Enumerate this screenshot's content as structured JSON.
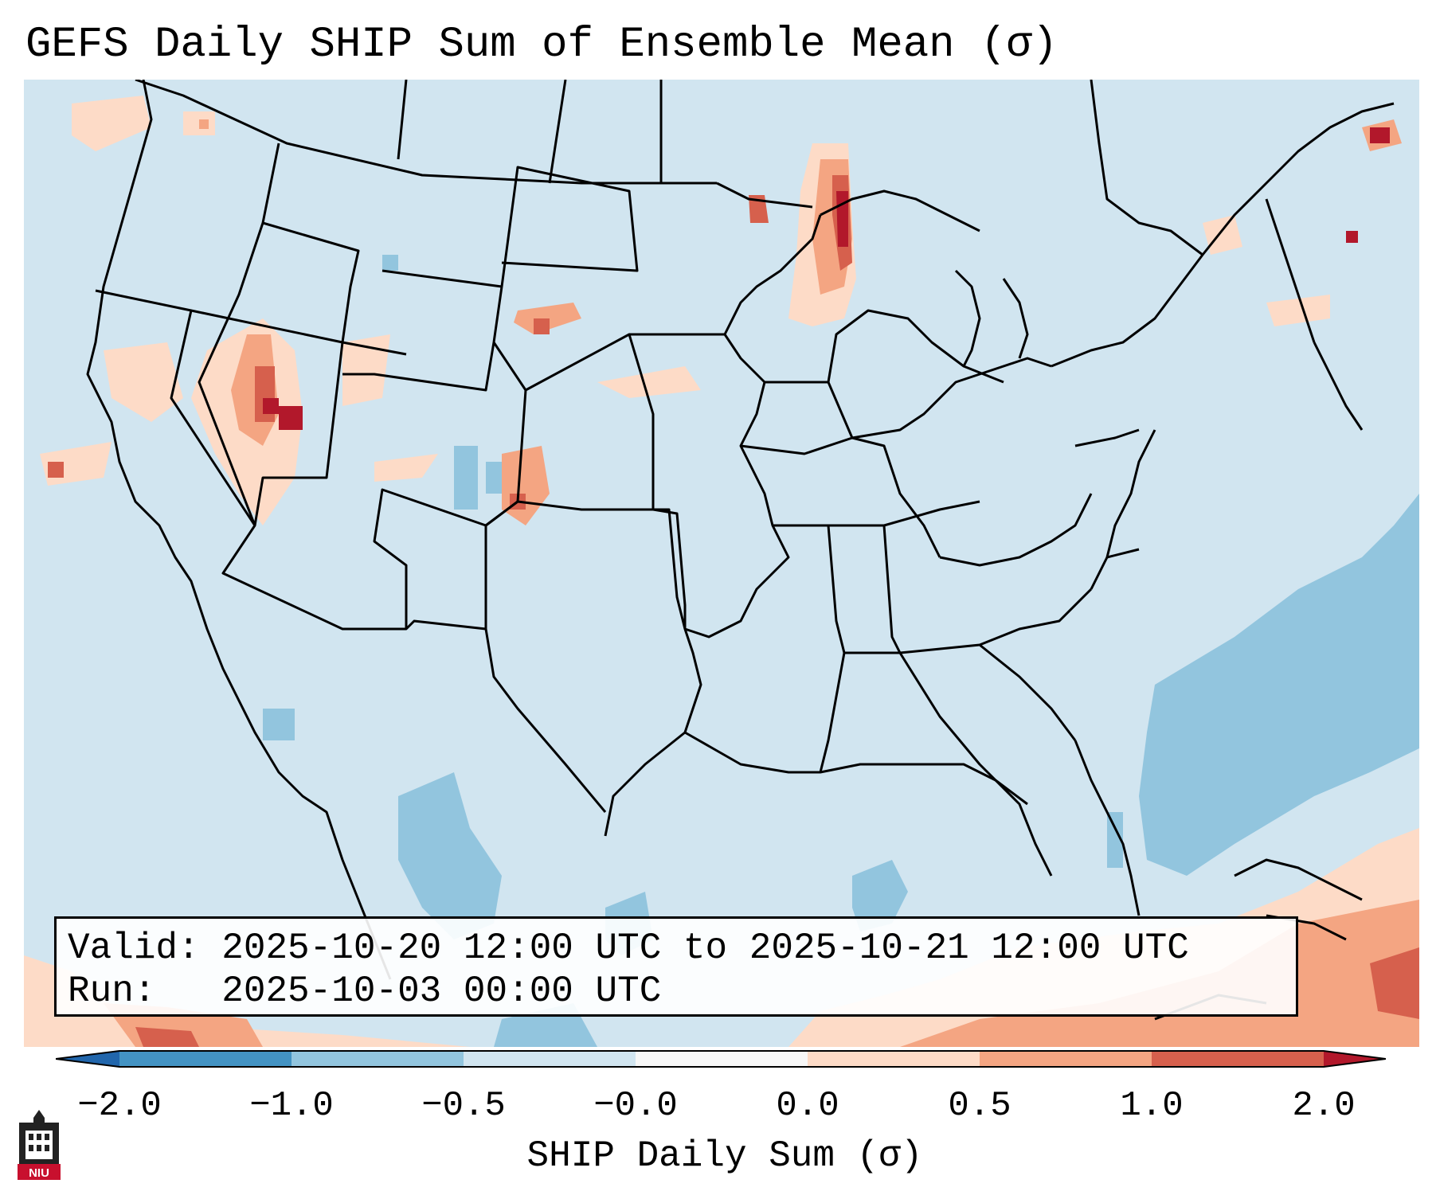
{
  "title": "GEFS Daily SHIP Sum of Ensemble Mean (σ)",
  "valid_line": "Valid: 2025-10-20 12:00 UTC to 2025-10-21 12:00 UTC",
  "run_line": "Run:   2025-10-03 00:00 UTC",
  "colorbar": {
    "label": "SHIP Daily Sum (σ)",
    "ticks": [
      "−2.0",
      "−1.0",
      "−0.5",
      "−0.0",
      "0.0",
      "0.5",
      "1.0",
      "2.0"
    ],
    "colors": [
      "#2166ac",
      "#4393c3",
      "#92c5de",
      "#d1e5f0",
      "#f7f7f7",
      "#fddbc7",
      "#f4a582",
      "#d6604d",
      "#b2182b"
    ]
  },
  "logo_text": "NIU",
  "map_colors": {
    "background": "#d1e5f0",
    "negative": "#92c5de",
    "positive_light": "#fddbc7",
    "positive_medium": "#f4a582",
    "positive_strong": "#d6604d",
    "positive_max": "#b2182b"
  }
}
